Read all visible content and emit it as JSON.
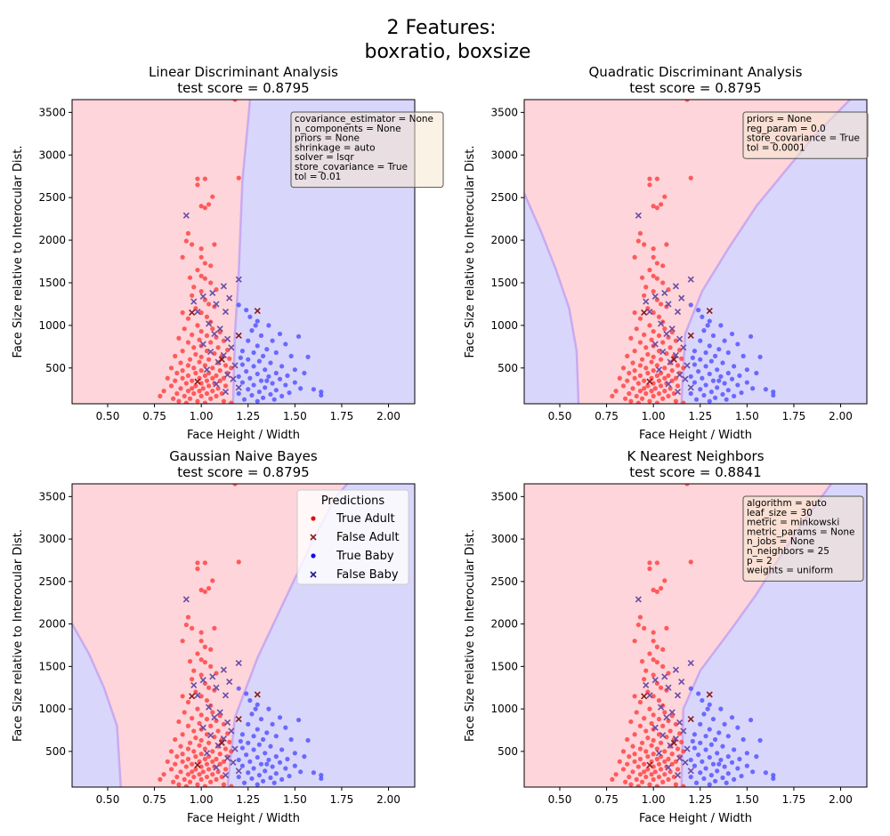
{
  "figure_title_line1": "2 Features:",
  "figure_title_line2": "boxratio, boxsize",
  "colors": {
    "adult_region": "#fdd5da",
    "baby_region": "#d9d6fb",
    "boundary": "#c9aaf0",
    "true_adult": "#ff4d4d",
    "false_adult": "#8b1a1a",
    "true_baby": "#4d4dff",
    "false_baby": "#6a4ca6",
    "box_fill": "#f5e8d0",
    "box_edge": "#555555"
  },
  "chart_data": [
    {
      "type": "scatter",
      "title": "Linear Discriminant Analysis",
      "subtitle": "test score = 0.8795",
      "xlabel": "Face Height / Width",
      "ylabel": "Face Size relative to Interocular Dist.",
      "xlim": [
        0.31,
        2.14
      ],
      "ylim": [
        80,
        3650
      ],
      "xticks": [
        "0.50",
        "0.75",
        "1.00",
        "1.25",
        "1.50",
        "1.75",
        "2.00"
      ],
      "yticks": [
        "500",
        "1000",
        "1500",
        "2000",
        "2500",
        "3000",
        "3500"
      ],
      "params": [
        "covariance_estimator = None",
        "n_components = None",
        "priors = None",
        "shrinkage = auto",
        "solver = lsqr",
        "store_covariance = True",
        "tol = 0.01"
      ],
      "decision_boundary": [
        [
          1.17,
          80
        ],
        [
          1.18,
          900
        ],
        [
          1.2,
          1600
        ],
        [
          1.22,
          2700
        ],
        [
          1.25,
          3400
        ],
        [
          1.26,
          3650
        ]
      ],
      "baby_side": "right"
    },
    {
      "type": "scatter",
      "title": "Quadratic Discriminant Analysis",
      "subtitle": "test score = 0.8795",
      "xlabel": "Face Height / Width",
      "ylabel": "Face Size relative to Interocular Dist.",
      "xlim": [
        0.31,
        2.14
      ],
      "ylim": [
        80,
        3650
      ],
      "xticks": [
        "0.50",
        "0.75",
        "1.00",
        "1.25",
        "1.50",
        "1.75",
        "2.00"
      ],
      "yticks": [
        "500",
        "1000",
        "1500",
        "2000",
        "2500",
        "3000",
        "3500"
      ],
      "params": [
        "priors = None",
        "reg_param = 0.0",
        "store_covariance = True",
        "tol = 0.0001"
      ],
      "decision_boundary_left": [
        [
          0.31,
          2550
        ],
        [
          0.4,
          2100
        ],
        [
          0.48,
          1650
        ],
        [
          0.55,
          1200
        ],
        [
          0.59,
          700
        ],
        [
          0.6,
          80
        ]
      ],
      "decision_boundary_right": [
        [
          1.15,
          80
        ],
        [
          1.17,
          900
        ],
        [
          1.26,
          1400
        ],
        [
          1.4,
          1900
        ],
        [
          1.55,
          2400
        ],
        [
          1.7,
          2800
        ],
        [
          1.85,
          3200
        ],
        [
          2.05,
          3650
        ]
      ],
      "baby_side": "outside"
    },
    {
      "type": "scatter",
      "title": "Gaussian Naive Bayes",
      "subtitle": "test score = 0.8795",
      "xlabel": "Face Height / Width",
      "ylabel": "Face Size relative to Interocular Dist.",
      "xlim": [
        0.31,
        2.14
      ],
      "ylim": [
        80,
        3650
      ],
      "xticks": [
        "0.50",
        "0.75",
        "1.00",
        "1.25",
        "1.50",
        "1.75",
        "2.00"
      ],
      "yticks": [
        "500",
        "1000",
        "1500",
        "2000",
        "2500",
        "3000",
        "3500"
      ],
      "legend": {
        "title": "Predictions",
        "entries": [
          "True Adult",
          "False Adult",
          "True Baby",
          "False Baby"
        ],
        "placement": "top-right"
      },
      "decision_boundary_left": [
        [
          0.31,
          2000
        ],
        [
          0.4,
          1650
        ],
        [
          0.48,
          1250
        ],
        [
          0.55,
          800
        ],
        [
          0.57,
          80
        ]
      ],
      "decision_boundary_right": [
        [
          1.14,
          80
        ],
        [
          1.18,
          900
        ],
        [
          1.3,
          1600
        ],
        [
          1.45,
          2300
        ],
        [
          1.6,
          3000
        ],
        [
          1.72,
          3500
        ],
        [
          1.78,
          3650
        ]
      ],
      "baby_side": "outside"
    },
    {
      "type": "scatter",
      "title": "K Nearest Neighbors",
      "subtitle": "test score = 0.8841",
      "xlabel": "Face Height / Width",
      "ylabel": "Face Size relative to Interocular Dist.",
      "xlim": [
        0.31,
        2.14
      ],
      "ylim": [
        80,
        3650
      ],
      "xticks": [
        "0.50",
        "0.75",
        "1.00",
        "1.25",
        "1.50",
        "1.75",
        "2.00"
      ],
      "yticks": [
        "500",
        "1000",
        "1500",
        "2000",
        "2500",
        "3000",
        "3500"
      ],
      "params": [
        "algorithm = auto",
        "leaf_size = 30",
        "metric = minkowski",
        "metric_params = None",
        "n_jobs = None",
        "n_neighbors = 25",
        "p = 2",
        "weights = uniform"
      ],
      "decision_boundary": [
        [
          1.15,
          80
        ],
        [
          1.16,
          1000
        ],
        [
          1.25,
          1450
        ],
        [
          1.42,
          1950
        ],
        [
          1.55,
          2350
        ],
        [
          1.68,
          2800
        ],
        [
          1.8,
          3200
        ],
        [
          1.95,
          3650
        ]
      ],
      "baby_side": "right"
    }
  ],
  "points": {
    "true_adult": [
      [
        1.18,
        3650
      ],
      [
        0.98,
        2720
      ],
      [
        1.02,
        2720
      ],
      [
        1.2,
        2730
      ],
      [
        0.98,
        2650
      ],
      [
        1.06,
        2510
      ],
      [
        1.0,
        2400
      ],
      [
        1.02,
        2380
      ],
      [
        1.04,
        2420
      ],
      [
        0.93,
        2080
      ],
      [
        0.92,
        1990
      ],
      [
        0.95,
        1950
      ],
      [
        1.0,
        1900
      ],
      [
        1.07,
        1950
      ],
      [
        0.9,
        1800
      ],
      [
        1.0,
        1800
      ],
      [
        1.02,
        1730
      ],
      [
        0.98,
        1650
      ],
      [
        1.05,
        1700
      ],
      [
        1.0,
        1580
      ],
      [
        0.94,
        1560
      ],
      [
        1.02,
        1550
      ],
      [
        1.05,
        1500
      ],
      [
        0.96,
        1450
      ],
      [
        1.0,
        1400
      ],
      [
        1.08,
        1420
      ],
      [
        0.95,
        1350
      ],
      [
        1.02,
        1300
      ],
      [
        1.04,
        1250
      ],
      [
        0.97,
        1200
      ],
      [
        1.07,
        1220
      ],
      [
        0.9,
        1150
      ],
      [
        1.0,
        1150
      ],
      [
        1.03,
        1100
      ],
      [
        0.93,
        1080
      ],
      [
        1.05,
        1040
      ],
      [
        0.98,
        1000
      ],
      [
        0.91,
        960
      ],
      [
        1.06,
        960
      ],
      [
        1.0,
        930
      ],
      [
        1.1,
        920
      ],
      [
        0.95,
        890
      ],
      [
        1.03,
        880
      ],
      [
        0.88,
        850
      ],
      [
        1.08,
        860
      ],
      [
        0.99,
        830
      ],
      [
        0.93,
        800
      ],
      [
        1.05,
        800
      ],
      [
        1.12,
        820
      ],
      [
        1.0,
        760
      ],
      [
        0.96,
        740
      ],
      [
        1.09,
        740
      ],
      [
        0.9,
        700
      ],
      [
        1.03,
        700
      ],
      [
        1.14,
        710
      ],
      [
        0.97,
        660
      ],
      [
        1.07,
        670
      ],
      [
        0.86,
        640
      ],
      [
        1.0,
        630
      ],
      [
        1.11,
        640
      ],
      [
        0.94,
        600
      ],
      [
        1.04,
        600
      ],
      [
        1.15,
        610
      ],
      [
        0.89,
        560
      ],
      [
        0.99,
        570
      ],
      [
        1.09,
        560
      ],
      [
        0.93,
        530
      ],
      [
        1.02,
        530
      ],
      [
        1.13,
        530
      ],
      [
        0.84,
        500
      ],
      [
        0.96,
        500
      ],
      [
        1.06,
        500
      ],
      [
        1.16,
        500
      ],
      [
        0.9,
        470
      ],
      [
        1.0,
        470
      ],
      [
        1.1,
        470
      ],
      [
        0.87,
        440
      ],
      [
        0.97,
        440
      ],
      [
        1.04,
        440
      ],
      [
        1.14,
        440
      ],
      [
        0.93,
        410
      ],
      [
        1.02,
        410
      ],
      [
        1.08,
        410
      ],
      [
        0.82,
        380
      ],
      [
        0.9,
        380
      ],
      [
        0.99,
        380
      ],
      [
        1.06,
        380
      ],
      [
        1.12,
        380
      ],
      [
        0.86,
        350
      ],
      [
        0.95,
        350
      ],
      [
        1.03,
        350
      ],
      [
        1.1,
        350
      ],
      [
        0.92,
        320
      ],
      [
        1.0,
        320
      ],
      [
        1.07,
        320
      ],
      [
        0.84,
        290
      ],
      [
        0.97,
        290
      ],
      [
        1.04,
        290
      ],
      [
        1.13,
        290
      ],
      [
        0.89,
        260
      ],
      [
        0.95,
        260
      ],
      [
        1.01,
        260
      ],
      [
        1.09,
        260
      ],
      [
        0.8,
        230
      ],
      [
        0.93,
        230
      ],
      [
        0.99,
        230
      ],
      [
        1.06,
        230
      ],
      [
        0.87,
        200
      ],
      [
        0.96,
        200
      ],
      [
        1.03,
        200
      ],
      [
        1.11,
        200
      ],
      [
        0.78,
        170
      ],
      [
        0.91,
        170
      ],
      [
        1.0,
        170
      ],
      [
        1.08,
        170
      ],
      [
        0.85,
        140
      ],
      [
        0.94,
        140
      ],
      [
        1.05,
        140
      ],
      [
        0.88,
        110
      ],
      [
        0.98,
        110
      ],
      [
        1.12,
        110
      ],
      [
        0.92,
        90
      ],
      [
        1.02,
        90
      ],
      [
        1.16,
        90
      ]
    ],
    "false_adult": [
      [
        1.3,
        1170
      ],
      [
        0.95,
        1150
      ],
      [
        1.11,
        600
      ],
      [
        1.2,
        880
      ],
      [
        0.98,
        340
      ]
    ],
    "true_baby": [
      [
        1.2,
        1240
      ],
      [
        1.24,
        1180
      ],
      [
        1.3,
        1050
      ],
      [
        1.36,
        1000
      ],
      [
        1.42,
        900
      ],
      [
        1.52,
        870
      ],
      [
        1.27,
        940
      ],
      [
        1.32,
        880
      ],
      [
        1.38,
        820
      ],
      [
        1.45,
        780
      ],
      [
        1.25,
        820
      ],
      [
        1.3,
        760
      ],
      [
        1.35,
        720
      ],
      [
        1.4,
        680
      ],
      [
        1.48,
        640
      ],
      [
        1.57,
        630
      ],
      [
        1.22,
        700
      ],
      [
        1.28,
        680
      ],
      [
        1.33,
        640
      ],
      [
        1.25,
        600
      ],
      [
        1.31,
        580
      ],
      [
        1.37,
        560
      ],
      [
        1.43,
        520
      ],
      [
        1.5,
        480
      ],
      [
        1.55,
        440
      ],
      [
        1.22,
        540
      ],
      [
        1.28,
        520
      ],
      [
        1.34,
        480
      ],
      [
        1.4,
        440
      ],
      [
        1.46,
        410
      ],
      [
        1.24,
        460
      ],
      [
        1.3,
        430
      ],
      [
        1.36,
        400
      ],
      [
        1.42,
        370
      ],
      [
        1.5,
        330
      ],
      [
        1.2,
        400
      ],
      [
        1.26,
        380
      ],
      [
        1.32,
        350
      ],
      [
        1.38,
        320
      ],
      [
        1.45,
        300
      ],
      [
        1.53,
        260
      ],
      [
        1.6,
        250
      ],
      [
        1.64,
        220
      ],
      [
        1.22,
        330
      ],
      [
        1.28,
        300
      ],
      [
        1.34,
        270
      ],
      [
        1.4,
        240
      ],
      [
        1.47,
        210
      ],
      [
        1.25,
        250
      ],
      [
        1.31,
        220
      ],
      [
        1.37,
        190
      ],
      [
        1.43,
        170
      ],
      [
        1.2,
        200
      ],
      [
        1.27,
        180
      ],
      [
        1.33,
        150
      ],
      [
        1.39,
        130
      ],
      [
        1.23,
        130
      ],
      [
        1.3,
        110
      ],
      [
        1.64,
        180
      ],
      [
        1.35,
        350
      ],
      [
        1.21,
        620
      ],
      [
        1.29,
        1000
      ],
      [
        1.26,
        1100
      ]
    ],
    "false_baby": [
      [
        0.92,
        2290
      ],
      [
        1.2,
        1540
      ],
      [
        1.12,
        1460
      ],
      [
        1.06,
        1380
      ],
      [
        1.01,
        1340
      ],
      [
        1.15,
        1320
      ],
      [
        0.96,
        1280
      ],
      [
        1.08,
        1250
      ],
      [
        1.13,
        1160
      ],
      [
        0.98,
        1160
      ],
      [
        1.04,
        1020
      ],
      [
        1.1,
        960
      ],
      [
        1.07,
        900
      ],
      [
        1.14,
        840
      ],
      [
        1.01,
        780
      ],
      [
        1.16,
        740
      ],
      [
        1.05,
        690
      ],
      [
        1.12,
        650
      ],
      [
        1.09,
        570
      ],
      [
        1.18,
        530
      ],
      [
        1.03,
        480
      ],
      [
        1.14,
        420
      ],
      [
        1.17,
        370
      ],
      [
        1.08,
        310
      ],
      [
        1.2,
        270
      ],
      [
        1.13,
        220
      ]
    ]
  }
}
